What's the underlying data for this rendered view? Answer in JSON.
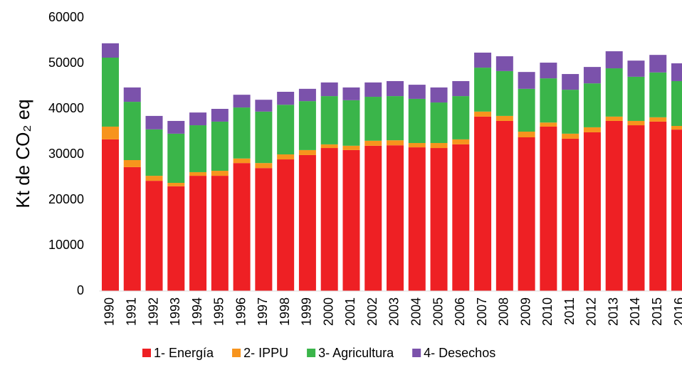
{
  "chart_data": {
    "type": "stacked_bar",
    "y_label": "Kt de CO₂ eq",
    "categories": [
      "1990",
      "1991",
      "1992",
      "1993",
      "1994",
      "1995",
      "1996",
      "1997",
      "1998",
      "1999",
      "2000",
      "2001",
      "2002",
      "2003",
      "2004",
      "2005",
      "2006",
      "2007",
      "2008",
      "2009",
      "2010",
      "2011",
      "2012",
      "2013",
      "2014",
      "2015",
      "2016"
    ],
    "series": [
      {
        "name": "1- Energía",
        "color": "#ee2024",
        "values": [
          33300,
          27200,
          24200,
          23000,
          25300,
          25300,
          28100,
          27000,
          28900,
          29850,
          31400,
          30950,
          31900,
          32000,
          31550,
          31400,
          32200,
          38300,
          37350,
          33750,
          36100,
          33450,
          34850,
          37350,
          36400,
          37200,
          35450
        ]
      },
      {
        "name": "2- IPPU",
        "color": "#f7941d",
        "values": [
          2800,
          1550,
          1100,
          750,
          800,
          1100,
          1000,
          1100,
          1100,
          1100,
          800,
          950,
          1100,
          1100,
          950,
          1100,
          1100,
          1100,
          1100,
          1250,
          900,
          1100,
          1100,
          950,
          950,
          950,
          800
        ]
      },
      {
        "name": "3- Agricultura",
        "color": "#3ab54a",
        "values": [
          15150,
          12800,
          10200,
          10800,
          10300,
          10800,
          11200,
          11300,
          10900,
          10750,
          10600,
          10000,
          9650,
          9700,
          9700,
          8900,
          9500,
          9650,
          9850,
          9400,
          9700,
          9650,
          9650,
          10600,
          9700,
          9850,
          9850
        ]
      },
      {
        "name": "4- Desechos",
        "color": "#7b52ab",
        "values": [
          3150,
          3150,
          2950,
          2800,
          2800,
          2800,
          2800,
          2600,
          2850,
          2700,
          3000,
          2800,
          3150,
          3300,
          3100,
          3300,
          3300,
          3300,
          3250,
          3700,
          3450,
          3450,
          3600,
          3750,
          3550,
          3850,
          3900
        ]
      }
    ],
    "ylim": [
      0,
      60000
    ],
    "yticks": [
      0,
      10000,
      20000,
      30000,
      40000,
      50000,
      60000
    ],
    "legend": "bottom"
  }
}
